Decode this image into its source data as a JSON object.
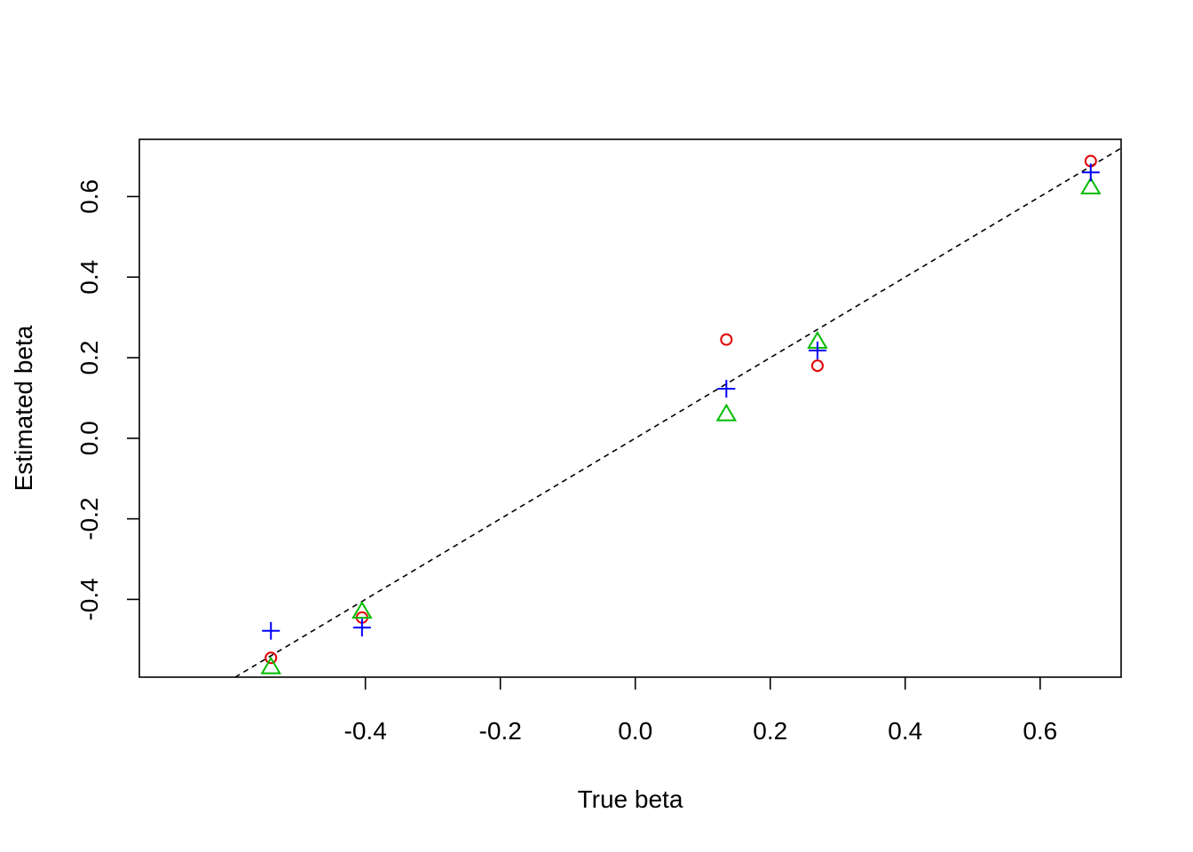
{
  "chart_data": {
    "type": "scatter",
    "title": "",
    "xlabel": "True beta",
    "ylabel": "Estimated beta",
    "xlim": [
      -0.735,
      0.72
    ],
    "ylim": [
      -0.593,
      0.742
    ],
    "x_ticks": [
      "-0.4",
      "-0.2",
      "0.0",
      "0.2",
      "0.4",
      "0.6"
    ],
    "y_ticks": [
      "-0.4",
      "-0.2",
      "0.0",
      "0.2",
      "0.4",
      "0.6"
    ],
    "grid": false,
    "legend": "none",
    "reference_line": {
      "kind": "identity",
      "style": "dashed",
      "color": "#000000"
    },
    "series": [
      {
        "marker": "circle",
        "color": "#DF0000",
        "points": [
          {
            "x": 0.675,
            "y": 0.688
          },
          {
            "x": 0.135,
            "y": 0.245
          },
          {
            "x": 0.27,
            "y": 0.18
          },
          {
            "x": -0.405,
            "y": -0.445
          },
          {
            "x": -0.54,
            "y": -0.545
          }
        ]
      },
      {
        "marker": "triangle",
        "color": "#00BB00",
        "points": [
          {
            "x": 0.675,
            "y": 0.623
          },
          {
            "x": 0.135,
            "y": 0.06
          },
          {
            "x": 0.27,
            "y": 0.24
          },
          {
            "x": -0.405,
            "y": -0.43
          },
          {
            "x": -0.54,
            "y": -0.568
          }
        ]
      },
      {
        "marker": "plus",
        "color": "#0000FF",
        "points": [
          {
            "x": 0.675,
            "y": 0.66
          },
          {
            "x": 0.135,
            "y": 0.123
          },
          {
            "x": 0.27,
            "y": 0.218
          },
          {
            "x": -0.405,
            "y": -0.47
          },
          {
            "x": -0.54,
            "y": -0.478
          }
        ]
      }
    ]
  }
}
